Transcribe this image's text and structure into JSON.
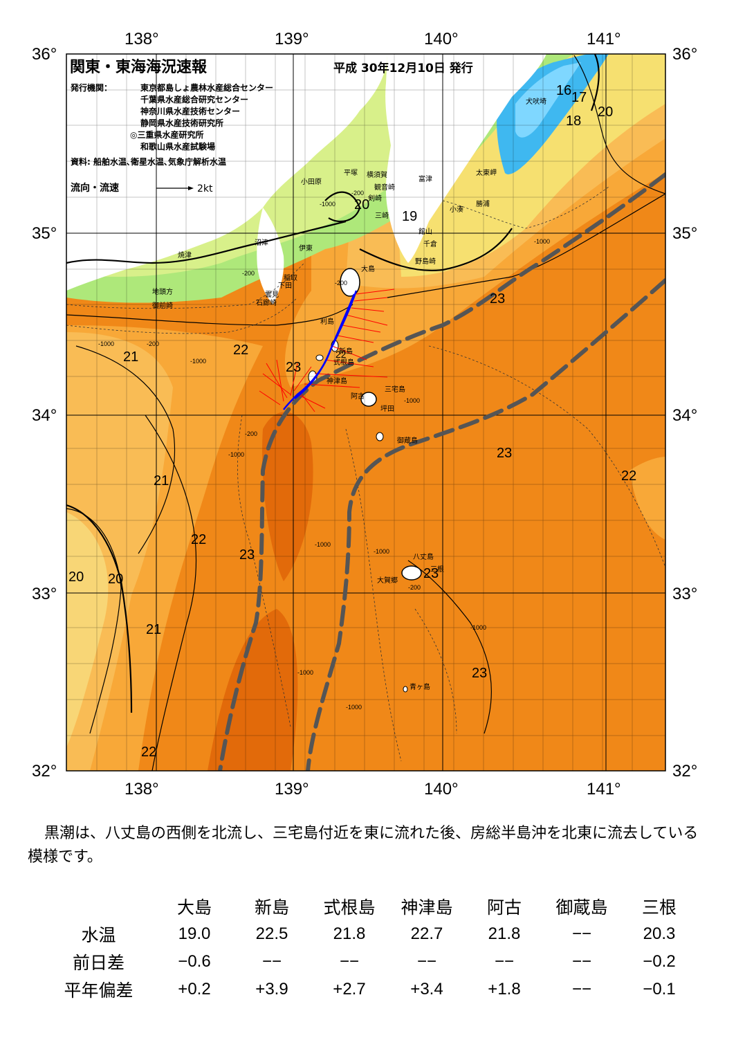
{
  "header": {
    "title": "関東・東海海況速報",
    "issue_date": "平成 30年12月10日 発行",
    "issuer_label": "発行機関：",
    "issuers": [
      "東京都島しょ農林水産総合センター",
      "千葉県水産総合研究センター",
      "神奈川県水産技術センター",
      "静岡県水産技術研究所",
      "◎三重県水産研究所",
      "和歌山県水産試験場"
    ],
    "sources": "資料: 船舶水温､衛星水温､気象庁解析水温",
    "flow_legend": "流向・流速",
    "flow_scale": "2kt"
  },
  "axes": {
    "lon_ticks": [
      "138°",
      "139°",
      "140°",
      "141°"
    ],
    "lat_ticks": [
      "36°",
      "35°",
      "34°",
      "33°",
      "32°"
    ]
  },
  "places": [
    {
      "name": "犬吠埼"
    },
    {
      "name": "太東岬"
    },
    {
      "name": "勝浦"
    },
    {
      "name": "小湊"
    },
    {
      "name": "富津"
    },
    {
      "name": "館山"
    },
    {
      "name": "千倉"
    },
    {
      "name": "野島崎"
    },
    {
      "name": "横須賀"
    },
    {
      "name": "観音崎"
    },
    {
      "name": "平塚"
    },
    {
      "name": "剣崎"
    },
    {
      "name": "三崎"
    },
    {
      "name": "小田原"
    },
    {
      "name": "沼津"
    },
    {
      "name": "伊東"
    },
    {
      "name": "焼津"
    },
    {
      "name": "稲取"
    },
    {
      "name": "下田"
    },
    {
      "name": "雲見"
    },
    {
      "name": "石廊崎"
    },
    {
      "name": "地頭方"
    },
    {
      "name": "御前崎"
    },
    {
      "name": "大島"
    },
    {
      "name": "利島"
    },
    {
      "name": "新島"
    },
    {
      "name": "式根島"
    },
    {
      "name": "神津島"
    },
    {
      "name": "三宅島"
    },
    {
      "name": "阿古"
    },
    {
      "name": "坪田"
    },
    {
      "name": "御蔵島"
    },
    {
      "name": "八丈島"
    },
    {
      "name": "大賀郷"
    },
    {
      "name": "三根"
    },
    {
      "name": "青ヶ島"
    }
  ],
  "isotherm_labels": [
    "16",
    "17",
    "18",
    "20",
    "20",
    "19",
    "23",
    "22",
    "21",
    "23",
    "21",
    "22",
    "23",
    "21",
    "20",
    "20",
    "23",
    "23",
    "22",
    "22",
    "23",
    "21",
    "22"
  ],
  "depth_labels": [
    "-200",
    "-1000",
    "-200",
    "-1000",
    "-200",
    "-1000",
    "-200",
    "-1000",
    "-1000",
    "-1000",
    "-200",
    "-1000",
    "-1000",
    "-1000",
    "-200",
    "-1000",
    "-1000"
  ],
  "colors": {
    "kuroshio_axis": "#555555",
    "flow_arrows_a": "#ff0000",
    "flow_arrows_b": "#0000ff",
    "temp_16": "#3fb8f0",
    "temp_18": "#aee87a",
    "temp_20": "#f6e070",
    "temp_22": "#f8a838",
    "temp_23": "#f08818",
    "temp_24": "#e26a0a"
  },
  "summary": "黒潮は、八丈島の西側を北流し、三宅島付近を東に流れた後、房総半島沖を北東に流去している模様です。",
  "table": {
    "columns": [
      "大島",
      "新島",
      "式根島",
      "神津島",
      "阿古",
      "御蔵島",
      "三根"
    ],
    "rows": [
      {
        "label": "水温",
        "values": [
          "19.0",
          "22.5",
          "21.8",
          "22.7",
          "21.8",
          "−−",
          "20.3"
        ]
      },
      {
        "label": "前日差",
        "values": [
          "−0.6",
          "−−",
          "−−",
          "−−",
          "−−",
          "−−",
          "−0.2"
        ]
      },
      {
        "label": "平年偏差",
        "values": [
          "+0.2",
          "+3.9",
          "+2.7",
          "+3.4",
          "+1.8",
          "−−",
          "−0.1"
        ]
      }
    ]
  }
}
